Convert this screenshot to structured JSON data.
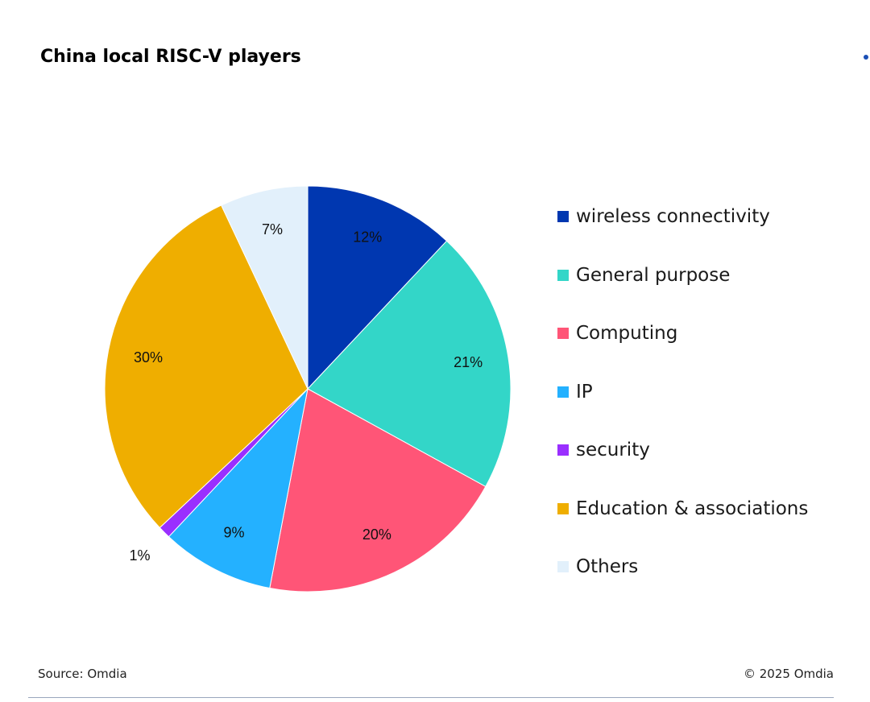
{
  "chart_data": {
    "type": "pie",
    "title": "China local RISC-V players",
    "categories": [
      "wireless connectivity",
      "General purpose",
      "Computing",
      "IP",
      "security",
      "Education & associations",
      "Others"
    ],
    "values": [
      12,
      21,
      20,
      9,
      1,
      30,
      7
    ],
    "data_labels": [
      "12%",
      "21%",
      "20%",
      "9%",
      "1%",
      "30%",
      "7%"
    ],
    "colors": [
      "#0037b0",
      "#33d6c8",
      "#ff5577",
      "#24b1ff",
      "#9a2fff",
      "#efae00",
      "#e2f0fb"
    ],
    "start_angle_deg": 0,
    "direction": "clockwise",
    "legend_position": "right"
  },
  "footer": {
    "source": "Source: Omdia",
    "copyright": "© 2025 Omdia"
  },
  "decor": {
    "dot_color": "#1a4fb5"
  }
}
